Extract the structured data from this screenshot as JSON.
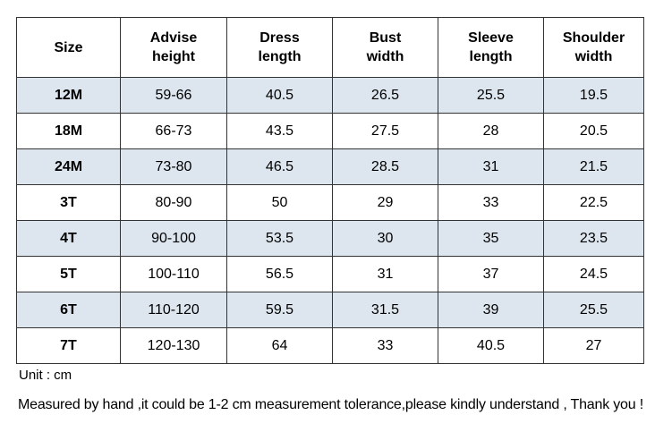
{
  "table": {
    "headers": [
      [
        "Size"
      ],
      [
        "Advise",
        "height"
      ],
      [
        "Dress",
        "length"
      ],
      [
        "Bust",
        "width"
      ],
      [
        "Sleeve",
        "length"
      ],
      [
        "Shoulder",
        "width"
      ]
    ],
    "rows": [
      [
        "12M",
        "59-66",
        "40.5",
        "26.5",
        "25.5",
        "19.5"
      ],
      [
        "18M",
        "66-73",
        "43.5",
        "27.5",
        "28",
        "20.5"
      ],
      [
        "24M",
        "73-80",
        "46.5",
        "28.5",
        "31",
        "21.5"
      ],
      [
        "3T",
        "80-90",
        "50",
        "29",
        "33",
        "22.5"
      ],
      [
        "4T",
        "90-100",
        "53.5",
        "30",
        "35",
        "23.5"
      ],
      [
        "5T",
        "100-110",
        "56.5",
        "31",
        "37",
        "24.5"
      ],
      [
        "6T",
        "110-120",
        "59.5",
        "31.5",
        "39",
        "25.5"
      ],
      [
        "7T",
        "120-130",
        "64",
        "33",
        "40.5",
        "27"
      ]
    ]
  },
  "notes": {
    "unit": "Unit : cm",
    "disclaimer": "Measured by hand ,it could be 1-2 cm measurement tolerance,please kindly understand , Thank you !"
  },
  "colors": {
    "shaded_row": "#dde6ef",
    "border": "#333333"
  }
}
